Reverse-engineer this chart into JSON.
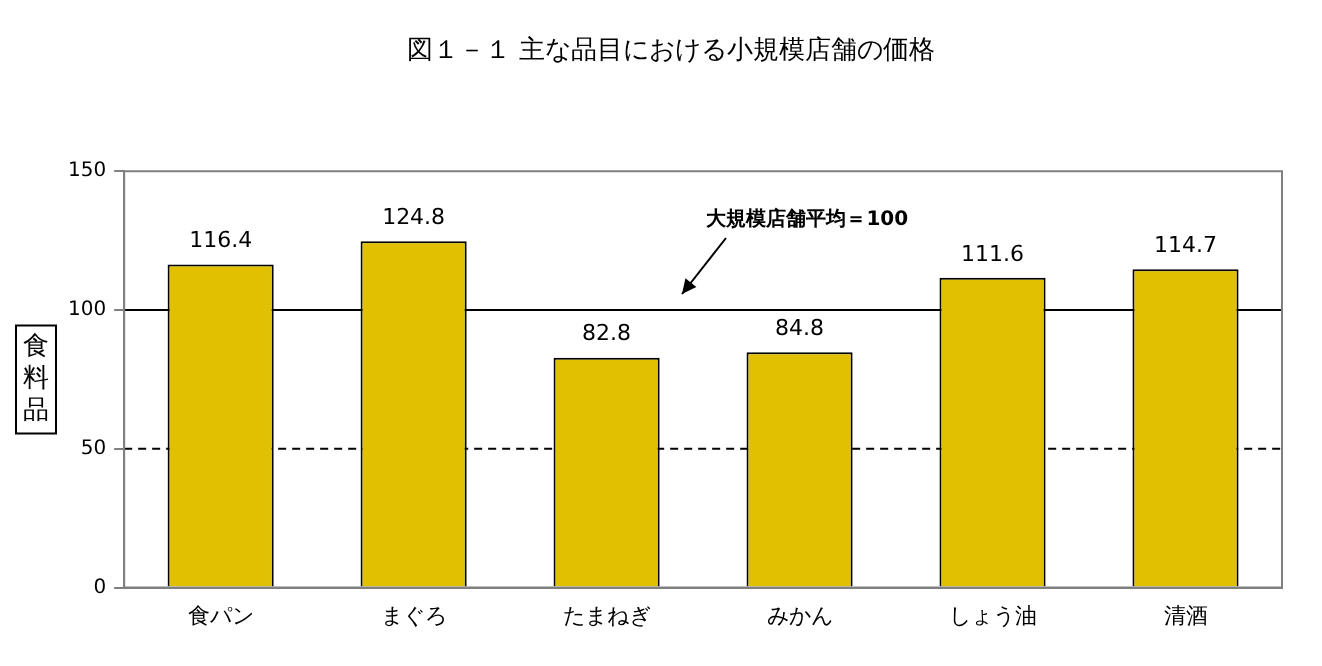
{
  "chart_data": {
    "type": "bar",
    "title": "図１－１ 主な品目における小規模店舗の価格",
    "ylabel": "食料品",
    "categories": [
      "食パン",
      "まぐろ",
      "たまねぎ",
      "みかん",
      "しょう油",
      "清酒"
    ],
    "values": [
      116.4,
      124.8,
      82.8,
      84.8,
      111.6,
      114.7
    ],
    "color": "#e0c000",
    "ylim": [
      0,
      150
    ],
    "yticks": [
      0,
      50,
      100,
      150
    ],
    "data_labels": true,
    "legend": false,
    "grid": false,
    "ref_lines": [
      {
        "axis": "y",
        "value": 100,
        "label": "大規模店舗平均＝100",
        "line_style": "solid",
        "color": "#000000"
      },
      {
        "axis": "y",
        "value": 50,
        "label": null,
        "line_style": "dashed",
        "color": "#000000"
      }
    ]
  }
}
